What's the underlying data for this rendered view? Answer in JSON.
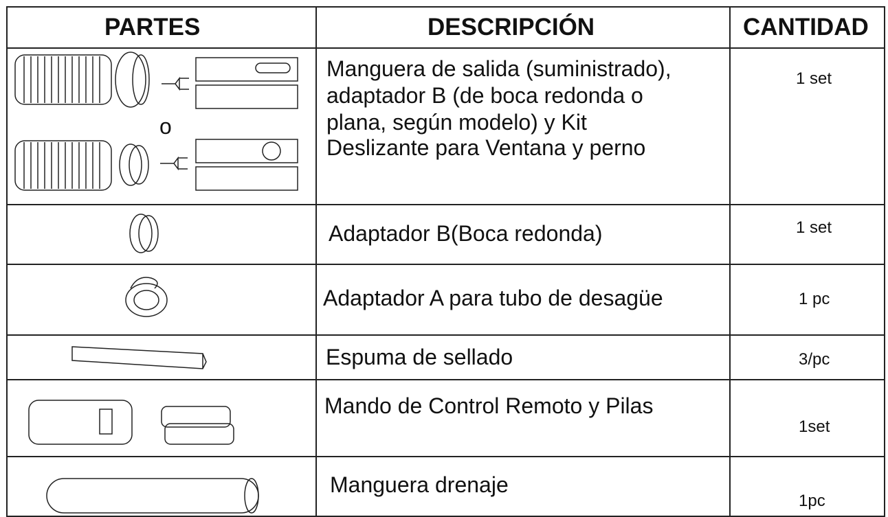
{
  "table": {
    "header": [
      "PARTES",
      "DESCRIPCIÓN",
      "CANTIDAD"
    ],
    "rows": [
      {
        "parts_text": "o",
        "description": [
          "Manguera de salida (suministrado),",
          "adaptador B (de boca redonda o",
          "plana, según modelo) y Kit",
          "Deslizante para Ventana  y perno"
        ],
        "quantity": "1 set"
      },
      {
        "description": "Adaptador B(Boca redonda)",
        "quantity": "1 set"
      },
      {
        "description": "Adaptador A para tubo de desagüe",
        "quantity": "1 pc"
      },
      {
        "description": "Espuma de sellado",
        "quantity": "3/pc"
      },
      {
        "description": "Mando de Control Remoto y Pilas",
        "quantity": "1set"
      },
      {
        "description": "Manguera drenaje",
        "quantity": "1pc"
      }
    ]
  }
}
